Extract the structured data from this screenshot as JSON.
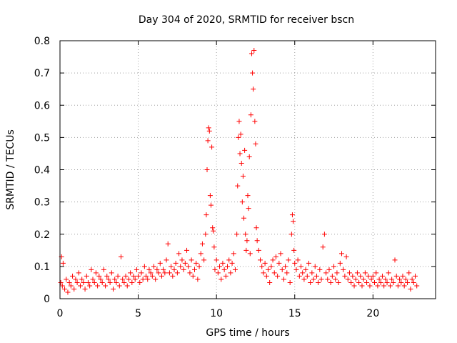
{
  "chart_data": {
    "type": "scatter",
    "title": "Day 304 of 2020, SRMTID for receiver bscn",
    "xlabel": "GPS time / hours",
    "ylabel": "SRMTID / TECUs",
    "xlim": [
      0,
      24
    ],
    "ylim": [
      0,
      0.8
    ],
    "xticks": [
      0,
      5,
      10,
      15,
      20
    ],
    "xtick_labels": [
      "0",
      "5",
      "10",
      "15",
      "20"
    ],
    "yticks": [
      0,
      0.1,
      0.2,
      0.3,
      0.4,
      0.5,
      0.6,
      0.7,
      0.8
    ],
    "ytick_labels": [
      "0",
      "0.1",
      "0.2",
      "0.3",
      "0.4",
      "0.5",
      "0.6",
      "0.7",
      "0.8"
    ],
    "grid": true,
    "marker": "+",
    "series": [
      {
        "name": "SRMTID",
        "color": "#ff0000",
        "points": [
          [
            0.05,
            0.05
          ],
          [
            0.1,
            0.13
          ],
          [
            0.15,
            0.04
          ],
          [
            0.2,
            0.11
          ],
          [
            0.3,
            0.03
          ],
          [
            0.4,
            0.06
          ],
          [
            0.5,
            0.02
          ],
          [
            0.6,
            0.05
          ],
          [
            0.7,
            0.04
          ],
          [
            0.8,
            0.07
          ],
          [
            0.9,
            0.03
          ],
          [
            1.0,
            0.06
          ],
          [
            1.1,
            0.05
          ],
          [
            1.2,
            0.08
          ],
          [
            1.3,
            0.04
          ],
          [
            1.4,
            0.06
          ],
          [
            1.5,
            0.05
          ],
          [
            1.6,
            0.03
          ],
          [
            1.7,
            0.07
          ],
          [
            1.8,
            0.05
          ],
          [
            1.9,
            0.04
          ],
          [
            2.0,
            0.09
          ],
          [
            2.1,
            0.06
          ],
          [
            2.2,
            0.05
          ],
          [
            2.3,
            0.08
          ],
          [
            2.4,
            0.04
          ],
          [
            2.5,
            0.07
          ],
          [
            2.6,
            0.06
          ],
          [
            2.7,
            0.05
          ],
          [
            2.8,
            0.09
          ],
          [
            2.9,
            0.04
          ],
          [
            3.0,
            0.07
          ],
          [
            3.1,
            0.06
          ],
          [
            3.2,
            0.05
          ],
          [
            3.3,
            0.08
          ],
          [
            3.4,
            0.03
          ],
          [
            3.5,
            0.06
          ],
          [
            3.6,
            0.05
          ],
          [
            3.7,
            0.07
          ],
          [
            3.8,
            0.04
          ],
          [
            3.9,
            0.13
          ],
          [
            4.0,
            0.06
          ],
          [
            4.1,
            0.05
          ],
          [
            4.2,
            0.07
          ],
          [
            4.3,
            0.04
          ],
          [
            4.4,
            0.06
          ],
          [
            4.5,
            0.08
          ],
          [
            4.6,
            0.05
          ],
          [
            4.7,
            0.07
          ],
          [
            4.8,
            0.06
          ],
          [
            4.9,
            0.09
          ],
          [
            5.0,
            0.07
          ],
          [
            5.1,
            0.05
          ],
          [
            5.2,
            0.08
          ],
          [
            5.3,
            0.06
          ],
          [
            5.4,
            0.1
          ],
          [
            5.5,
            0.07
          ],
          [
            5.6,
            0.06
          ],
          [
            5.7,
            0.09
          ],
          [
            5.8,
            0.08
          ],
          [
            5.9,
            0.07
          ],
          [
            6.0,
            0.1
          ],
          [
            6.1,
            0.06
          ],
          [
            6.2,
            0.09
          ],
          [
            6.3,
            0.08
          ],
          [
            6.4,
            0.11
          ],
          [
            6.5,
            0.07
          ],
          [
            6.6,
            0.09
          ],
          [
            6.7,
            0.08
          ],
          [
            6.8,
            0.12
          ],
          [
            6.9,
            0.17
          ],
          [
            7.0,
            0.08
          ],
          [
            7.1,
            0.1
          ],
          [
            7.2,
            0.07
          ],
          [
            7.3,
            0.09
          ],
          [
            7.4,
            0.11
          ],
          [
            7.5,
            0.08
          ],
          [
            7.6,
            0.14
          ],
          [
            7.7,
            0.1
          ],
          [
            7.8,
            0.12
          ],
          [
            7.9,
            0.09
          ],
          [
            8.0,
            0.11
          ],
          [
            8.1,
            0.15
          ],
          [
            8.2,
            0.1
          ],
          [
            8.3,
            0.08
          ],
          [
            8.4,
            0.12
          ],
          [
            8.5,
            0.07
          ],
          [
            8.6,
            0.09
          ],
          [
            8.7,
            0.11
          ],
          [
            8.8,
            0.06
          ],
          [
            8.9,
            0.1
          ],
          [
            9.0,
            0.14
          ],
          [
            9.1,
            0.17
          ],
          [
            9.2,
            0.12
          ],
          [
            9.3,
            0.2
          ],
          [
            9.35,
            0.26
          ],
          [
            9.4,
            0.4
          ],
          [
            9.45,
            0.49
          ],
          [
            9.5,
            0.53
          ],
          [
            9.55,
            0.52
          ],
          [
            9.6,
            0.32
          ],
          [
            9.65,
            0.29
          ],
          [
            9.7,
            0.47
          ],
          [
            9.75,
            0.22
          ],
          [
            9.8,
            0.21
          ],
          [
            9.85,
            0.16
          ],
          [
            9.9,
            0.09
          ],
          [
            10.0,
            0.12
          ],
          [
            10.1,
            0.08
          ],
          [
            10.2,
            0.1
          ],
          [
            10.3,
            0.06
          ],
          [
            10.4,
            0.11
          ],
          [
            10.5,
            0.09
          ],
          [
            10.6,
            0.07
          ],
          [
            10.7,
            0.1
          ],
          [
            10.8,
            0.12
          ],
          [
            10.9,
            0.08
          ],
          [
            11.0,
            0.11
          ],
          [
            11.1,
            0.14
          ],
          [
            11.2,
            0.09
          ],
          [
            11.3,
            0.2
          ],
          [
            11.35,
            0.35
          ],
          [
            11.4,
            0.5
          ],
          [
            11.45,
            0.55
          ],
          [
            11.5,
            0.45
          ],
          [
            11.55,
            0.51
          ],
          [
            11.6,
            0.42
          ],
          [
            11.65,
            0.3
          ],
          [
            11.7,
            0.38
          ],
          [
            11.75,
            0.25
          ],
          [
            11.8,
            0.46
          ],
          [
            11.85,
            0.2
          ],
          [
            11.9,
            0.15
          ],
          [
            11.95,
            0.18
          ],
          [
            12.0,
            0.32
          ],
          [
            12.05,
            0.28
          ],
          [
            12.1,
            0.44
          ],
          [
            12.15,
            0.14
          ],
          [
            12.2,
            0.57
          ],
          [
            12.25,
            0.76
          ],
          [
            12.3,
            0.7
          ],
          [
            12.35,
            0.65
          ],
          [
            12.4,
            0.77
          ],
          [
            12.45,
            0.55
          ],
          [
            12.5,
            0.48
          ],
          [
            12.55,
            0.22
          ],
          [
            12.6,
            0.18
          ],
          [
            12.7,
            0.15
          ],
          [
            12.8,
            0.12
          ],
          [
            12.9,
            0.1
          ],
          [
            13.0,
            0.08
          ],
          [
            13.1,
            0.11
          ],
          [
            13.2,
            0.07
          ],
          [
            13.3,
            0.09
          ],
          [
            13.4,
            0.05
          ],
          [
            13.5,
            0.1
          ],
          [
            13.6,
            0.12
          ],
          [
            13.7,
            0.08
          ],
          [
            13.8,
            0.13
          ],
          [
            13.9,
            0.07
          ],
          [
            14.0,
            0.11
          ],
          [
            14.1,
            0.14
          ],
          [
            14.2,
            0.09
          ],
          [
            14.3,
            0.06
          ],
          [
            14.4,
            0.1
          ],
          [
            14.5,
            0.08
          ],
          [
            14.6,
            0.12
          ],
          [
            14.7,
            0.05
          ],
          [
            14.8,
            0.2
          ],
          [
            14.85,
            0.26
          ],
          [
            14.9,
            0.24
          ],
          [
            14.95,
            0.15
          ],
          [
            15.0,
            0.11
          ],
          [
            15.1,
            0.09
          ],
          [
            15.2,
            0.12
          ],
          [
            15.3,
            0.07
          ],
          [
            15.4,
            0.1
          ],
          [
            15.5,
            0.08
          ],
          [
            15.6,
            0.06
          ],
          [
            15.7,
            0.09
          ],
          [
            15.8,
            0.07
          ],
          [
            15.9,
            0.11
          ],
          [
            16.0,
            0.05
          ],
          [
            16.1,
            0.08
          ],
          [
            16.2,
            0.06
          ],
          [
            16.3,
            0.1
          ],
          [
            16.4,
            0.07
          ],
          [
            16.5,
            0.05
          ],
          [
            16.6,
            0.09
          ],
          [
            16.7,
            0.06
          ],
          [
            16.8,
            0.16
          ],
          [
            16.9,
            0.2
          ],
          [
            17.0,
            0.08
          ],
          [
            17.1,
            0.06
          ],
          [
            17.2,
            0.09
          ],
          [
            17.3,
            0.05
          ],
          [
            17.4,
            0.07
          ],
          [
            17.5,
            0.1
          ],
          [
            17.6,
            0.06
          ],
          [
            17.7,
            0.08
          ],
          [
            17.8,
            0.05
          ],
          [
            17.9,
            0.11
          ],
          [
            18.0,
            0.14
          ],
          [
            18.1,
            0.09
          ],
          [
            18.2,
            0.07
          ],
          [
            18.3,
            0.13
          ],
          [
            18.4,
            0.06
          ],
          [
            18.5,
            0.08
          ],
          [
            18.6,
            0.05
          ],
          [
            18.7,
            0.07
          ],
          [
            18.8,
            0.04
          ],
          [
            18.9,
            0.06
          ],
          [
            19.0,
            0.08
          ],
          [
            19.1,
            0.05
          ],
          [
            19.2,
            0.07
          ],
          [
            19.3,
            0.04
          ],
          [
            19.4,
            0.06
          ],
          [
            19.5,
            0.08
          ],
          [
            19.6,
            0.05
          ],
          [
            19.7,
            0.07
          ],
          [
            19.8,
            0.04
          ],
          [
            19.9,
            0.06
          ],
          [
            20.0,
            0.07
          ],
          [
            20.1,
            0.05
          ],
          [
            20.2,
            0.08
          ],
          [
            20.3,
            0.04
          ],
          [
            20.4,
            0.06
          ],
          [
            20.5,
            0.05
          ],
          [
            20.6,
            0.07
          ],
          [
            20.7,
            0.04
          ],
          [
            20.8,
            0.06
          ],
          [
            20.9,
            0.05
          ],
          [
            21.0,
            0.08
          ],
          [
            21.1,
            0.04
          ],
          [
            21.2,
            0.06
          ],
          [
            21.3,
            0.05
          ],
          [
            21.4,
            0.12
          ],
          [
            21.5,
            0.07
          ],
          [
            21.6,
            0.04
          ],
          [
            21.7,
            0.06
          ],
          [
            21.8,
            0.05
          ],
          [
            21.9,
            0.07
          ],
          [
            22.0,
            0.04
          ],
          [
            22.1,
            0.06
          ],
          [
            22.2,
            0.05
          ],
          [
            22.3,
            0.08
          ],
          [
            22.4,
            0.03
          ],
          [
            22.5,
            0.06
          ],
          [
            22.6,
            0.05
          ],
          [
            22.7,
            0.07
          ],
          [
            22.8,
            0.04
          ]
        ]
      }
    ]
  }
}
